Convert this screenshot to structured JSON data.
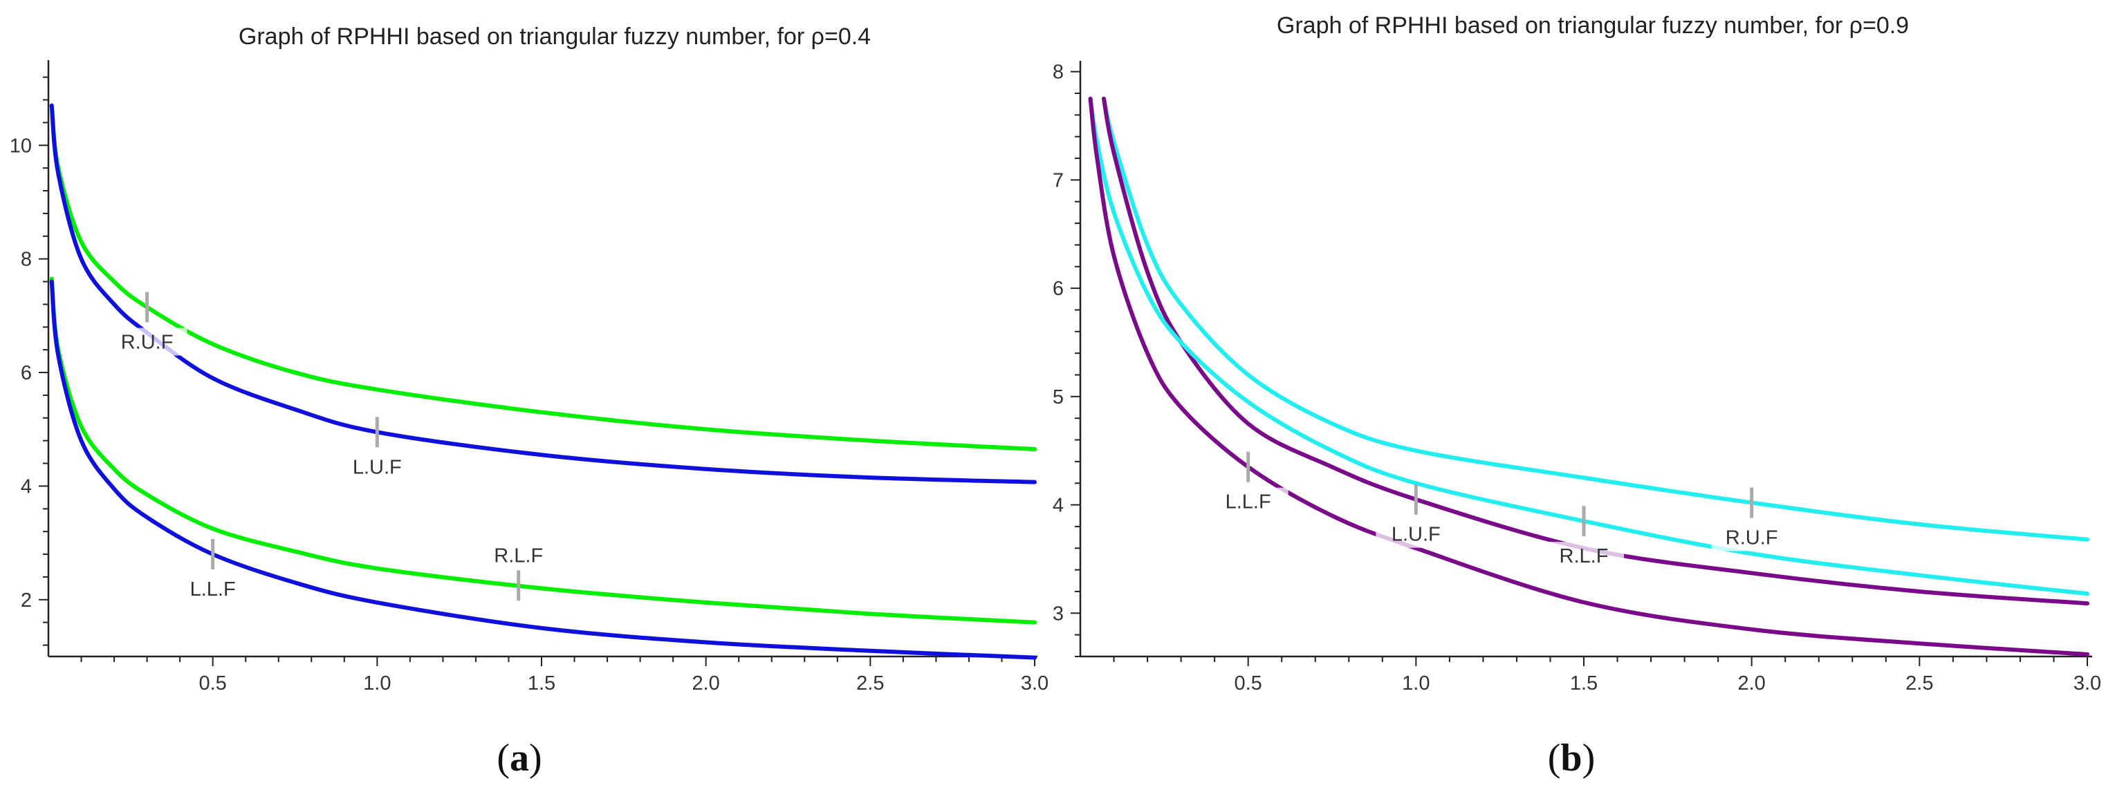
{
  "chart_data": [
    {
      "type": "line",
      "title": "Graph of RPHHI based on triangular fuzzy number, for ρ=0.4",
      "caption": "(a)",
      "caption_letter": "a",
      "xlim": [
        0,
        3.0
      ],
      "ylim": [
        1.0,
        11.5
      ],
      "x_ticks": [
        0.5,
        1.0,
        1.5,
        2.0,
        2.5,
        3.0
      ],
      "x_tick_labels": [
        "0.5",
        "1.0",
        "1.5",
        "2.0",
        "2.5",
        "3.0"
      ],
      "y_ticks": [
        2,
        4,
        6,
        8,
        10
      ],
      "y_tick_labels": [
        "2",
        "4",
        "6",
        "8",
        "10"
      ],
      "series": [
        {
          "name": "R.U.F",
          "color": "#00ee00",
          "x": [
            0.01,
            0.03,
            0.1,
            0.2,
            0.3,
            0.5,
            0.75,
            1.0,
            1.5,
            2.0,
            2.5,
            3.0
          ],
          "y": [
            10.7,
            9.6,
            8.3,
            7.6,
            7.15,
            6.5,
            6.0,
            5.7,
            5.3,
            5.0,
            4.8,
            4.65
          ]
        },
        {
          "name": "L.U.F",
          "color": "#1010dd",
          "x": [
            0.01,
            0.03,
            0.1,
            0.2,
            0.3,
            0.5,
            0.75,
            1.0,
            1.5,
            2.0,
            2.5,
            3.0
          ],
          "y": [
            10.7,
            9.5,
            8.0,
            7.2,
            6.7,
            5.9,
            5.35,
            4.95,
            4.55,
            4.3,
            4.15,
            4.07
          ]
        },
        {
          "name": "R.L.F",
          "color": "#00ee00",
          "x": [
            0.01,
            0.03,
            0.1,
            0.2,
            0.3,
            0.5,
            0.75,
            1.0,
            1.5,
            2.0,
            2.5,
            3.0
          ],
          "y": [
            7.65,
            6.4,
            5.05,
            4.3,
            3.85,
            3.25,
            2.85,
            2.55,
            2.2,
            1.95,
            1.75,
            1.6
          ]
        },
        {
          "name": "L.L.F",
          "color": "#1010dd",
          "x": [
            0.01,
            0.03,
            0.1,
            0.2,
            0.3,
            0.5,
            0.75,
            1.0,
            1.5,
            2.0,
            2.5,
            3.0
          ],
          "y": [
            7.6,
            6.3,
            4.8,
            3.95,
            3.45,
            2.8,
            2.3,
            1.95,
            1.5,
            1.25,
            1.1,
            0.98
          ]
        }
      ],
      "annotations": [
        {
          "text": "R.U.F",
          "x": 0.3,
          "y": 6.3
        },
        {
          "text": "L.U.F",
          "x": 1.0,
          "y": 4.1
        },
        {
          "text": "R.L.F",
          "x": 1.43,
          "y": 2.85
        },
        {
          "text": "L.L.F",
          "x": 0.5,
          "y": 2.0
        }
      ]
    },
    {
      "type": "line",
      "title": "Graph of RPHHI based on triangular fuzzy number, for ρ=0.9",
      "caption": "(b)",
      "caption_letter": "b",
      "xlim": [
        0,
        3.0
      ],
      "ylim": [
        2.6,
        8.1
      ],
      "x_ticks": [
        0.5,
        1.0,
        1.5,
        2.0,
        2.5,
        3.0
      ],
      "x_tick_labels": [
        "0.5",
        "1.0",
        "1.5",
        "2.0",
        "2.5",
        "3.0"
      ],
      "y_ticks": [
        3,
        4,
        5,
        6,
        7,
        8
      ],
      "y_tick_labels": [
        "3",
        "4",
        "5",
        "6",
        "7",
        "8"
      ],
      "series": [
        {
          "name": "R.U.F",
          "color": "#22eef0",
          "x": [
            0.07,
            0.1,
            0.2,
            0.3,
            0.5,
            0.75,
            1.0,
            1.5,
            2.0,
            2.5,
            3.0
          ],
          "y": [
            7.75,
            7.35,
            6.4,
            5.85,
            5.2,
            4.75,
            4.5,
            4.25,
            4.02,
            3.82,
            3.68
          ]
        },
        {
          "name": "L.U.F",
          "color": "#7a0a8a",
          "x": [
            0.07,
            0.1,
            0.2,
            0.3,
            0.5,
            0.75,
            1.0,
            1.5,
            2.0,
            2.5,
            3.0
          ],
          "y": [
            7.75,
            7.25,
            6.15,
            5.5,
            4.75,
            4.35,
            4.05,
            3.6,
            3.37,
            3.2,
            3.09
          ]
        },
        {
          "name": "R.L.F",
          "color": "#22eef0",
          "x": [
            0.03,
            0.05,
            0.1,
            0.2,
            0.3,
            0.5,
            0.75,
            1.0,
            1.5,
            2.0,
            2.5,
            3.0
          ],
          "y": [
            7.75,
            7.35,
            6.7,
            5.95,
            5.5,
            4.95,
            4.5,
            4.2,
            3.85,
            3.55,
            3.35,
            3.18
          ]
        },
        {
          "name": "L.L.F",
          "color": "#7a0a8a",
          "x": [
            0.03,
            0.05,
            0.1,
            0.2,
            0.3,
            0.5,
            0.75,
            1.0,
            1.5,
            2.0,
            2.5,
            3.0
          ],
          "y": [
            7.75,
            7.2,
            6.3,
            5.4,
            4.9,
            4.35,
            3.9,
            3.6,
            3.1,
            2.85,
            2.72,
            2.62
          ]
        }
      ],
      "annotations": [
        {
          "text": "L.L.F",
          "x": 0.5,
          "y": 4.1
        },
        {
          "text": "L.U.F",
          "x": 1.0,
          "y": 3.55
        },
        {
          "text": "R.L.F",
          "x": 1.5,
          "y": 3.38
        },
        {
          "text": "R.U.F",
          "x": 2.0,
          "y": 3.56
        }
      ]
    }
  ]
}
